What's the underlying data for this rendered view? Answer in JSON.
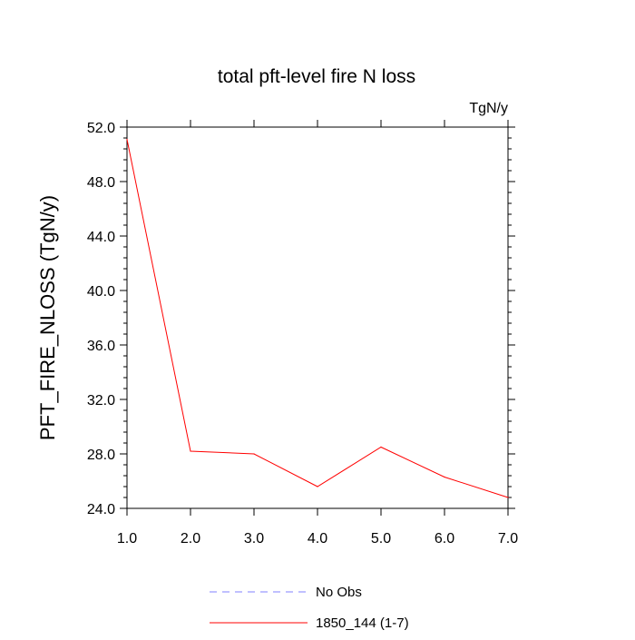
{
  "chart_data": {
    "type": "line",
    "title": "total pft-level fire N loss",
    "units_label": "TgN/y",
    "xlabel": "",
    "ylabel": "PFT_FIRE_NLOSS  (TgN/y)",
    "xlim": [
      1.0,
      7.0
    ],
    "ylim": [
      24.0,
      52.0
    ],
    "x_ticks": [
      1.0,
      2.0,
      3.0,
      4.0,
      5.0,
      6.0,
      7.0
    ],
    "x_tick_labels": [
      "1.0",
      "2.0",
      "3.0",
      "4.0",
      "5.0",
      "6.0",
      "7.0"
    ],
    "y_ticks": [
      24.0,
      28.0,
      32.0,
      36.0,
      40.0,
      44.0,
      48.0,
      52.0
    ],
    "y_tick_labels": [
      "24.0",
      "28.0",
      "32.0",
      "36.0",
      "40.0",
      "44.0",
      "48.0",
      "52.0"
    ],
    "grid": false,
    "legend_position": "bottom-center",
    "series": [
      {
        "name": "1850_144 (1-7)",
        "color": "#ff0000",
        "style": "solid",
        "x": [
          1,
          2,
          3,
          4,
          5,
          6,
          7
        ],
        "y": [
          51.1,
          28.2,
          28.0,
          25.6,
          28.5,
          26.3,
          24.8
        ]
      }
    ],
    "legend": [
      {
        "label": "No Obs",
        "color": "#8080ff",
        "style": "dashed"
      },
      {
        "label": "1850_144 (1-7)",
        "color": "#ff0000",
        "style": "solid"
      }
    ]
  }
}
